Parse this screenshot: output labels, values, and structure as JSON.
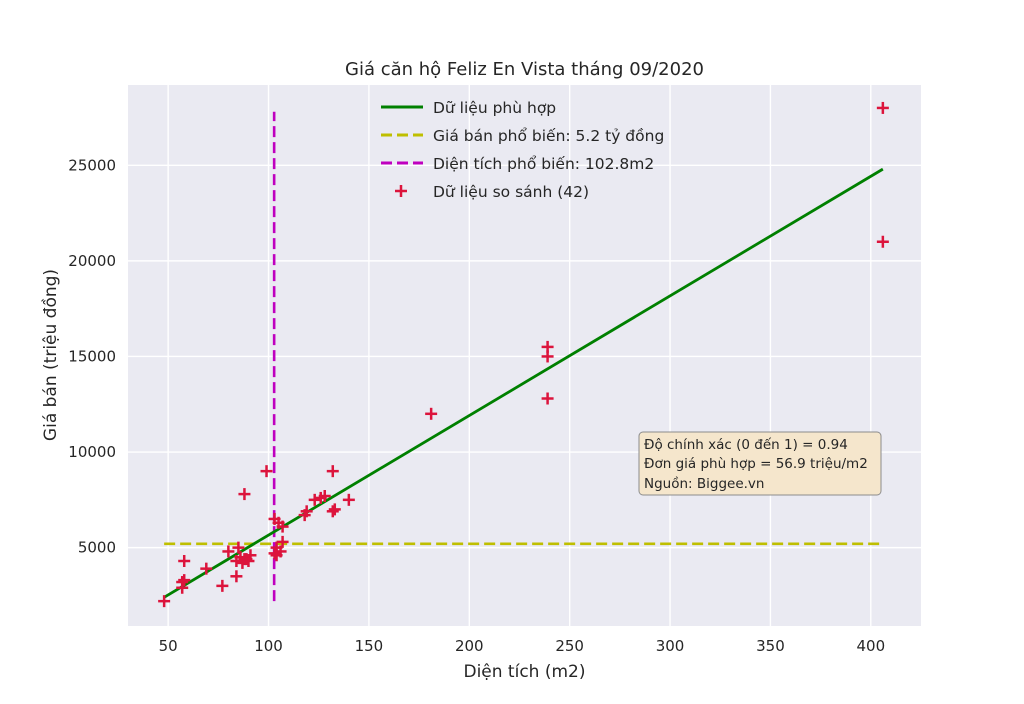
{
  "chart_data": {
    "type": "scatter",
    "title": "Giá căn hộ Feliz En Vista tháng 09/2020",
    "xlabel": "Diện tích (m2)",
    "ylabel": "Giá bán (triệu đồng)",
    "xlim": [
      30,
      425
    ],
    "ylim": [
      900,
      29200
    ],
    "xticks": [
      50,
      100,
      150,
      200,
      250,
      300,
      350,
      400
    ],
    "yticks": [
      5000,
      10000,
      15000,
      20000,
      25000
    ],
    "grid": true,
    "legend_position": "top-center",
    "colors": {
      "background": "#eaeaf2",
      "grid": "#ffffff",
      "fit": "#008000",
      "popular_price": "#bfbf00",
      "popular_area": "#bf00bf",
      "points": "#dc143c",
      "annotation_bg": "#f5e6cc",
      "annotation_border": "#8c8c8c"
    },
    "series": [
      {
        "name": "Dữ liệu phù hợp",
        "kind": "line",
        "x": [
          48,
          406
        ],
        "y": [
          2400,
          24800
        ]
      },
      {
        "name": "Giá bán phổ biến: 5.2 tỷ đồng",
        "kind": "hline-dashed",
        "y": 5200,
        "x": [
          48,
          406
        ]
      },
      {
        "name": "Diện tích phổ biến: 102.8m2",
        "kind": "vline-dashed",
        "x": 102.8,
        "y": [
          2200,
          27800
        ]
      },
      {
        "name": "Dữ liệu so sánh (42)",
        "kind": "scatter",
        "marker": "+",
        "x": [
          48,
          57,
          57,
          58,
          58,
          69,
          77,
          84,
          84,
          85,
          86,
          87,
          88,
          89,
          91,
          99,
          103,
          103,
          104,
          104,
          105,
          106,
          107,
          107,
          118,
          119,
          123,
          126,
          128,
          132,
          132,
          133,
          140,
          181,
          239,
          239,
          239,
          406,
          406,
          90,
          80,
          88
        ],
        "y": [
          2200,
          2900,
          3200,
          3300,
          4300,
          3900,
          3000,
          3500,
          4300,
          5000,
          4500,
          4200,
          7800,
          4400,
          4600,
          9000,
          4700,
          6500,
          4600,
          5000,
          6300,
          4800,
          5300,
          6100,
          6700,
          6900,
          7500,
          7600,
          7700,
          6900,
          9000,
          7000,
          7500,
          12000,
          15500,
          15000,
          12800,
          28000,
          21000,
          4300,
          4800,
          4400
        ]
      }
    ],
    "annotation": {
      "lines": [
        "Độ chính xác (0 đến 1) = 0.94",
        "Đơn giá phù hợp = 56.9 triệu/m2",
        "Nguồn: Biggee.vn"
      ]
    }
  }
}
